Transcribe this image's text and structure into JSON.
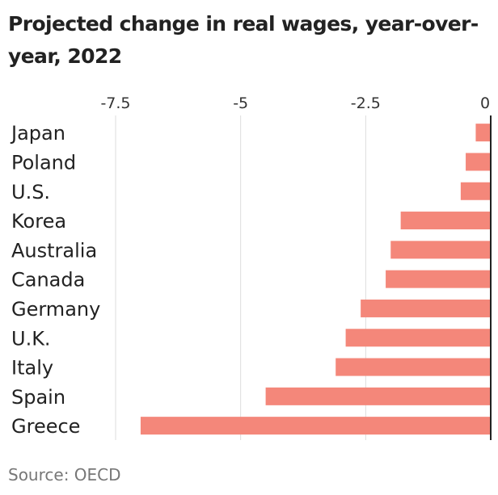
{
  "chart_data": {
    "type": "bar",
    "orientation": "horizontal",
    "title": "Projected change in real wages, year-over-year, 2022",
    "xlabel": "",
    "ylabel": "",
    "xlim": [
      -7.5,
      0
    ],
    "xticks": [
      -7.5,
      -5,
      -2.5,
      0
    ],
    "xtick_labels": [
      "-7.5",
      "-5",
      "-2.5",
      "0"
    ],
    "grid": true,
    "categories": [
      "Japan",
      "Poland",
      "U.S.",
      "Korea",
      "Australia",
      "Canada",
      "Germany",
      "U.K.",
      "Italy",
      "Spain",
      "Greece"
    ],
    "values": [
      -0.3,
      -0.5,
      -0.6,
      -1.8,
      -2.0,
      -2.1,
      -2.6,
      -2.9,
      -3.1,
      -4.5,
      -7.0
    ],
    "bar_color": "#f4877a",
    "source": "Source: OECD"
  }
}
